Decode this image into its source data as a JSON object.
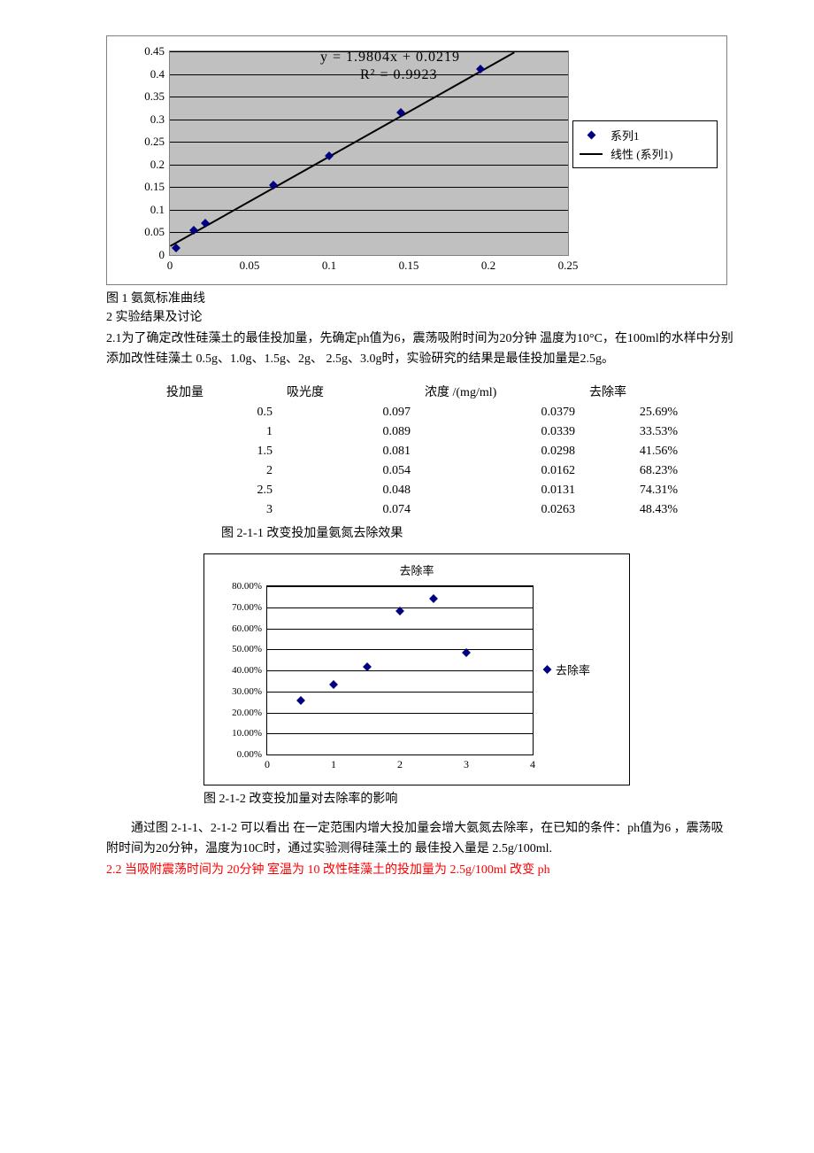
{
  "chart1": {
    "type": "scatter-with-trendline",
    "equation": "y = 1.9804x + 0.0219",
    "r2": "R² = 0.9923",
    "series_label": "系列1",
    "trend_label": "线性 (系列1)",
    "point_color": "#000080",
    "trend_color": "#000000",
    "plot_bg": "#c0c0c0",
    "xlim": [
      0,
      0.25
    ],
    "ylim": [
      0,
      0.45
    ],
    "x_ticks": [
      "0",
      "0.05",
      "0.1",
      "0.15",
      "0.2",
      "0.25"
    ],
    "y_ticks": [
      "0",
      "0.05",
      "0.1",
      "0.15",
      "0.2",
      "0.25",
      "0.3",
      "0.35",
      "0.4",
      "0.45"
    ],
    "points_x": [
      0.004,
      0.015,
      0.022,
      0.065,
      0.1,
      0.145,
      0.195
    ],
    "points_y": [
      0.015,
      0.055,
      0.07,
      0.155,
      0.22,
      0.315,
      0.41
    ]
  },
  "caption1": "图 1 氨氮标准曲线",
  "section2_heading": "2 实验结果及讨论",
  "para_2_1": "2.1为了确定改性硅藻土的最佳投加量，先确定ph值为6，震荡吸附时间为20分钟 温度为10°C，在100ml的水样中分别添加改性硅藻土 0.5g、1.0g、1.5g、2g、 2.5g、3.0g时，实验研究的结果是最佳投加量是2.5g。",
  "table": {
    "headers": [
      "投加量",
      "吸光度",
      "浓度 /(mg/ml)",
      "去除率"
    ],
    "rows": [
      [
        "0.5",
        "0.097",
        "0.0379",
        "25.69%"
      ],
      [
        "1",
        "0.089",
        "0.0339",
        "33.53%"
      ],
      [
        "1.5",
        "0.081",
        "0.0298",
        "41.56%"
      ],
      [
        "2",
        "0.054",
        "0.0162",
        "68.23%"
      ],
      [
        "2.5",
        "0.048",
        "0.0131",
        "74.31%"
      ],
      [
        "3",
        "0.074",
        "0.0263",
        "48.43%"
      ]
    ]
  },
  "caption2_1_1": "图 2-1-1 改变投加量氨氮去除效果",
  "chart2": {
    "type": "scatter",
    "title": "去除率",
    "legend_label": "去除率",
    "point_color": "#000080",
    "xlim": [
      0,
      4
    ],
    "ylim": [
      0,
      0.8
    ],
    "x_ticks": [
      "0",
      "1",
      "2",
      "3",
      "4"
    ],
    "y_ticks": [
      "0.00%",
      "10.00%",
      "20.00%",
      "30.00%",
      "40.00%",
      "50.00%",
      "60.00%",
      "70.00%",
      "80.00%"
    ],
    "points_x": [
      0.5,
      1,
      1.5,
      2,
      2.5,
      3
    ],
    "points_y": [
      0.2569,
      0.3353,
      0.4156,
      0.6823,
      0.7431,
      0.4843
    ]
  },
  "caption2_1_2": "图 2-1-2 改变投加量对去除率的影响",
  "para_summary": "通过图 2-1-1、2-1-2 可以看出 在一定范围内增大投加量会增大氨氮去除率，在已知的条件：ph值为6 ，震荡吸附时间为20分钟，温度为10C时，通过实验测得硅藻土的 最佳投入量是 2.5g/100ml.",
  "para_2_2": "2.2 当吸附震荡时间为 20分钟 室温为 10 改性硅藻土的投加量为 2.5g/100ml 改变 ph"
}
